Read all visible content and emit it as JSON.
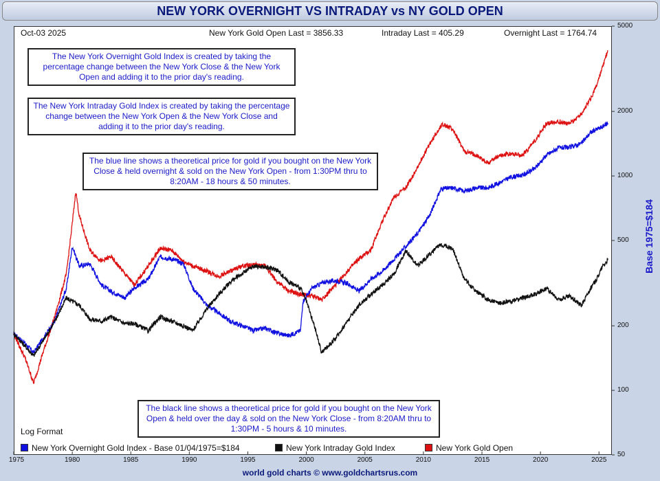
{
  "title": "NEW YORK OVERNIGHT VS INTRADAY vs NY GOLD OPEN",
  "header": {
    "date": "Oct-03  2025",
    "gold_open": "New York Gold Open Last = 3856.33",
    "intraday": "Intraday Last = 405.29",
    "overnight": "Overnight Last = 1764.74"
  },
  "notes": {
    "overnight_def": "The New York Overnight Gold Index is created by taking the percentage change between the New York Close & the New York Open and adding it to the prior day's reading.",
    "intraday_def": "The New York Intraday Gold Index is created by taking the percentage change between the New York Open & the New York Close and adding it to the prior day's reading.",
    "blue_line": "The blue line shows a theoretical price for gold if you bought on the New York Close & held overnight & sold on the New York Open - from 1:30PM thru to 8:20AM - 18 hours & 50 minutes.",
    "black_line": "The black line shows a theoretical price for gold if you bought on the New York Open & held over the day & sold on the New York Close - from 8:20AM thru to 1:30PM - 5 hours & 10 minutes."
  },
  "log_format_label": "Log Format",
  "legend": {
    "overnight": "New York Overnight Gold Index - Base 01/04/1975=$184",
    "intraday": "New York Intraday Gold Index",
    "gold_open": "New York Gold Open"
  },
  "footer": "world gold charts © www.goldchartsrus.com",
  "colors": {
    "overnight": "#1010e0",
    "intraday": "#111111",
    "gold_open": "#dd1111"
  },
  "chart_data": {
    "type": "line",
    "title": "NEW YORK OVERNIGHT VS INTRADAY vs NY GOLD OPEN",
    "ylabel": "Base 1975=$184",
    "y_scale": "log",
    "ylim": [
      50,
      5000
    ],
    "xlim": [
      1975,
      2026.1
    ],
    "x_ticks": [
      "1975",
      "1980",
      "1985",
      "1990",
      "1995",
      "2000",
      "2005",
      "2010",
      "2015",
      "2020",
      "2025"
    ],
    "y_ticks": [
      "50",
      "100",
      "200",
      "500",
      "1000",
      "2000",
      "5000"
    ],
    "grid": false,
    "legend_position": "bottom",
    "series": [
      {
        "name": "New York Overnight Gold Index - Base 01/04/1975=$184",
        "x": [
          1975,
          1976,
          1976.7,
          1977.5,
          1978.5,
          1979.5,
          1980.0,
          1980.6,
          1981.5,
          1982.5,
          1983.3,
          1984.5,
          1985.3,
          1986.5,
          1987.5,
          1988.5,
          1989.5,
          1990.3,
          1991.5,
          1992.5,
          1993.5,
          1994.5,
          1995.5,
          1996.5,
          1997.5,
          1998.5,
          1999.5,
          1999.7,
          2000.5,
          2001.5,
          2002.5,
          2003.5,
          2004.5,
          2005.5,
          2006.5,
          2007.5,
          2008.5,
          2009.5,
          2010.5,
          2011.5,
          2012.5,
          2013.5,
          2014.5,
          2015.5,
          2016.5,
          2017.5,
          2018.5,
          2019.5,
          2020.5,
          2021.5,
          2022.5,
          2023.5,
          2024.3,
          2024.8,
          2025.3,
          2025.76
        ],
        "y": [
          184,
          165,
          150,
          175,
          210,
          300,
          470,
          380,
          390,
          310,
          290,
          270,
          300,
          330,
          420,
          410,
          390,
          300,
          250,
          230,
          210,
          200,
          190,
          195,
          185,
          180,
          190,
          260,
          300,
          320,
          325,
          315,
          290,
          330,
          360,
          410,
          470,
          540,
          650,
          870,
          880,
          850,
          880,
          880,
          930,
          990,
          1010,
          1080,
          1250,
          1350,
          1360,
          1420,
          1600,
          1650,
          1700,
          1764.74
        ]
      },
      {
        "name": "New York Intraday Gold Index",
        "x": [
          1975,
          1976,
          1976.7,
          1977.5,
          1978.5,
          1979.5,
          1980.0,
          1980.6,
          1981.5,
          1982.5,
          1983.3,
          1984.5,
          1985.3,
          1986.5,
          1987.5,
          1988.5,
          1989.5,
          1990.3,
          1991.5,
          1992.5,
          1993.5,
          1994.5,
          1995.5,
          1996.5,
          1997.5,
          1998.5,
          1999.5,
          2000.0,
          2000.8,
          2001.3,
          2002.5,
          2003.5,
          2004.5,
          2005.5,
          2006.5,
          2007.5,
          2008.5,
          2009.5,
          2010.5,
          2011.5,
          2012.5,
          2013.5,
          2014.5,
          2015.5,
          2016.5,
          2017.5,
          2018.5,
          2019.5,
          2020.5,
          2021.5,
          2022.5,
          2023.5,
          2024.3,
          2024.8,
          2025.3,
          2025.76
        ],
        "y": [
          184,
          160,
          145,
          170,
          210,
          270,
          260,
          250,
          215,
          210,
          220,
          205,
          205,
          190,
          220,
          210,
          200,
          190,
          240,
          280,
          320,
          350,
          380,
          375,
          365,
          320,
          300,
          260,
          190,
          150,
          175,
          210,
          250,
          280,
          310,
          350,
          450,
          380,
          430,
          480,
          460,
          330,
          290,
          265,
          255,
          260,
          270,
          280,
          300,
          265,
          275,
          250,
          300,
          330,
          380,
          405.29
        ]
      },
      {
        "name": "New York Gold Open",
        "x": [
          1975,
          1976,
          1976.7,
          1977.5,
          1978.5,
          1979.5,
          1980.0,
          1980.3,
          1980.6,
          1981.5,
          1982.5,
          1983.3,
          1984.5,
          1985.3,
          1986.5,
          1987.5,
          1988.5,
          1989.5,
          1990.3,
          1991.5,
          1992.5,
          1993.5,
          1994.5,
          1995.5,
          1996.5,
          1997.5,
          1998.5,
          1999.5,
          2000.5,
          2001.3,
          2002.5,
          2003.5,
          2004.5,
          2005.5,
          2006.5,
          2007.5,
          2008.5,
          2009.5,
          2010.5,
          2011.6,
          2012.5,
          2013.5,
          2014.5,
          2015.5,
          2016.5,
          2017.5,
          2018.5,
          2019.5,
          2020.5,
          2021.5,
          2022.5,
          2023.5,
          2024.3,
          2024.8,
          2025.3,
          2025.76
        ],
        "y": [
          184,
          140,
          108,
          150,
          220,
          350,
          600,
          850,
          650,
          450,
          400,
          420,
          350,
          310,
          380,
          460,
          450,
          400,
          380,
          360,
          340,
          360,
          380,
          385,
          380,
          320,
          290,
          280,
          275,
          265,
          310,
          360,
          410,
          450,
          620,
          800,
          880,
          1100,
          1400,
          1750,
          1650,
          1300,
          1250,
          1150,
          1250,
          1270,
          1250,
          1450,
          1750,
          1800,
          1750,
          1950,
          2300,
          2650,
          3200,
          3856.33
        ]
      }
    ]
  }
}
